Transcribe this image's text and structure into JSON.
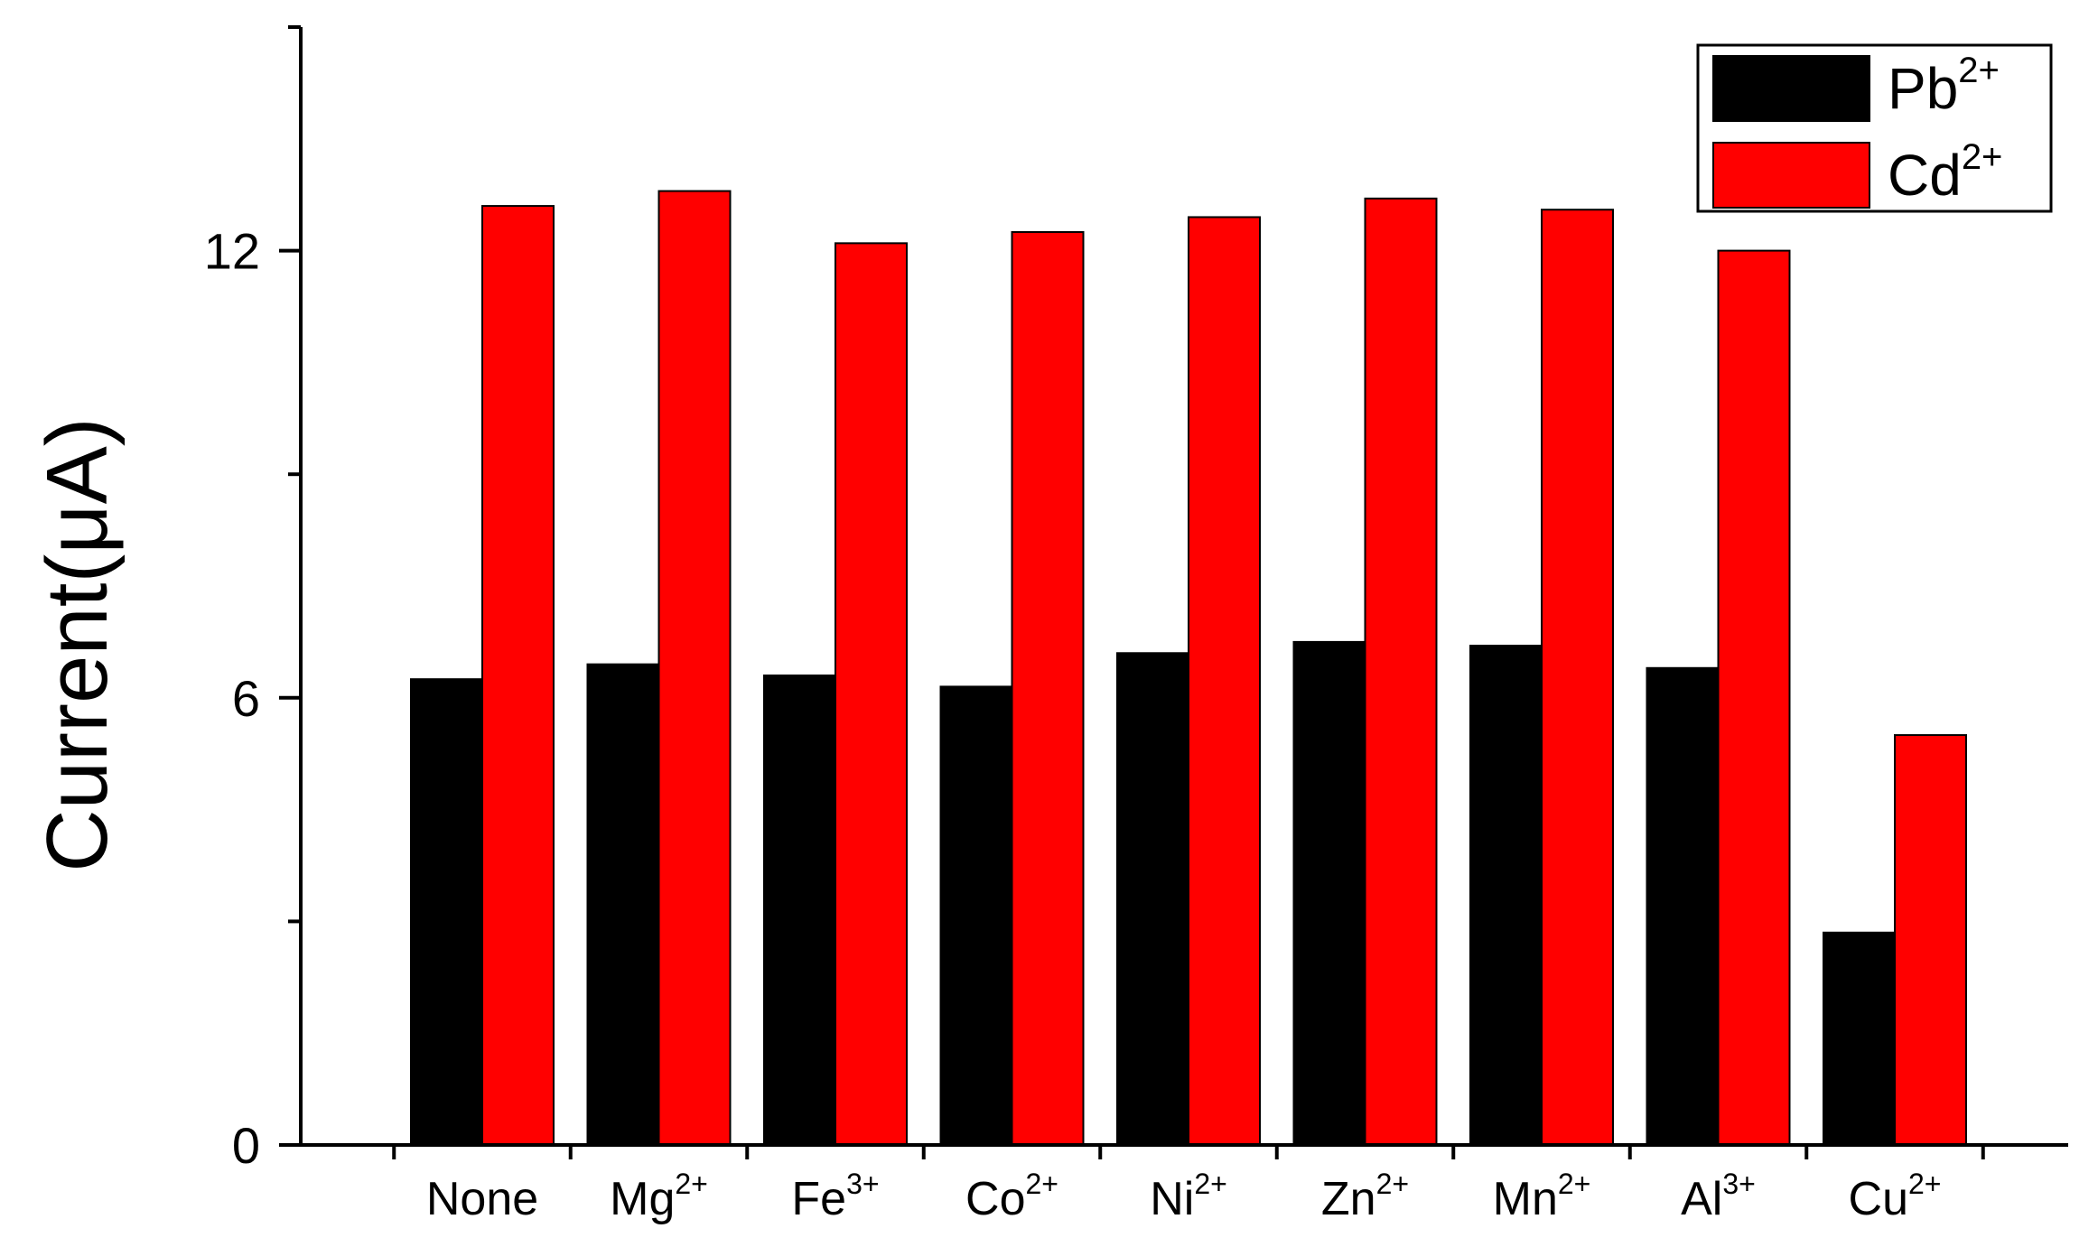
{
  "chart_data": {
    "type": "bar",
    "categories": [
      {
        "base": "None",
        "sup": ""
      },
      {
        "base": "Mg",
        "sup": "2+"
      },
      {
        "base": "Fe",
        "sup": "3+"
      },
      {
        "base": "Co",
        "sup": "2+"
      },
      {
        "base": "Ni",
        "sup": "2+"
      },
      {
        "base": "Zn",
        "sup": "2+"
      },
      {
        "base": "Mn",
        "sup": "2+"
      },
      {
        "base": "Al",
        "sup": "3+"
      },
      {
        "base": "Cu",
        "sup": "2+"
      }
    ],
    "series": [
      {
        "name": {
          "base": "Pb",
          "sup": "2+"
        },
        "color": "#000000",
        "values": [
          6.25,
          6.45,
          6.3,
          6.15,
          6.6,
          6.75,
          6.7,
          6.4,
          2.85
        ]
      },
      {
        "name": {
          "base": "Cd",
          "sup": "2+"
        },
        "color": "#ff0000",
        "values": [
          12.6,
          12.8,
          12.1,
          12.25,
          12.45,
          12.7,
          12.55,
          12.0,
          5.5
        ]
      }
    ],
    "ylabel": "Current(μA)",
    "xlabel": "",
    "ylim": [
      0,
      15
    ],
    "yticks": [
      {
        "value": 0,
        "label": "0"
      },
      {
        "value": 6,
        "label": "6"
      },
      {
        "value": 12,
        "label": "12"
      }
    ],
    "yminor": [
      3,
      9,
      15
    ],
    "grid": false,
    "legend": "top-right",
    "bar_outline": "#000000"
  }
}
